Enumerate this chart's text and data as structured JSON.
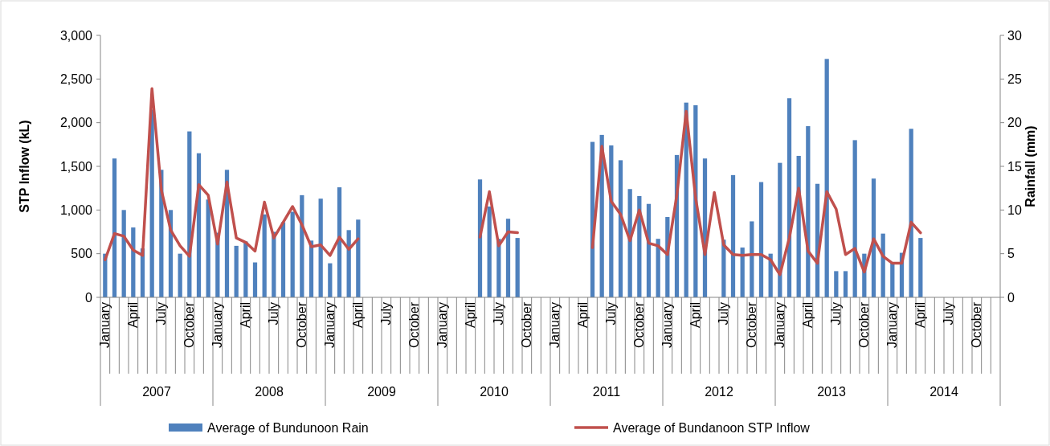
{
  "chart_data": {
    "type": "bar",
    "xlabel": null,
    "ylabel": "STP Inflow (kL)",
    "y2label": "Rainfall (mm)",
    "categories": [
      "January",
      null,
      null,
      "April",
      null,
      null,
      "July",
      null,
      null,
      "October",
      null,
      null,
      "January",
      null,
      null,
      "April",
      null,
      null,
      "July",
      null,
      null,
      "October",
      null,
      null,
      "January",
      null,
      null,
      "April",
      null,
      null,
      "July",
      null,
      null,
      "October",
      null,
      null,
      "January",
      null,
      null,
      "April",
      null,
      null,
      "July",
      null,
      null,
      "October",
      null,
      null,
      "January",
      null,
      null,
      "April",
      null,
      null,
      "July",
      null,
      null,
      "October",
      null,
      null,
      "January",
      null,
      null,
      "April",
      null,
      null,
      "July",
      null,
      null,
      "October",
      null,
      null,
      "January",
      null,
      null,
      "April",
      null,
      null,
      "July",
      null,
      null,
      "October",
      null,
      null,
      "January",
      null,
      null,
      "April",
      null,
      null,
      "July",
      null,
      null,
      "October",
      null,
      null
    ],
    "annotations": [
      "2007",
      "2008",
      "2009",
      "2010",
      "2011",
      "2012",
      "2013",
      "2014"
    ],
    "series": [
      {
        "name": "Average of Bundunoon Rain",
        "axis": "y2",
        "color": "#4f81bd",
        "values": [
          5.0,
          15.9,
          10.0,
          8.0,
          5.6,
          21.5,
          14.6,
          10.0,
          5.0,
          19.0,
          16.5,
          11.2,
          7.4,
          14.6,
          5.9,
          6.4,
          4.0,
          9.5,
          7.5,
          8.6,
          9.8,
          11.7,
          6.5,
          11.3,
          3.9,
          12.6,
          7.7,
          8.9,
          null,
          null,
          null,
          null,
          null,
          null,
          null,
          null,
          null,
          null,
          null,
          null,
          13.5,
          10.4,
          6.7,
          9.0,
          6.8,
          null,
          null,
          null,
          null,
          null,
          null,
          null,
          17.8,
          18.6,
          17.4,
          15.7,
          12.4,
          11.6,
          10.7,
          6.7,
          9.2,
          16.3,
          22.3,
          22.0,
          15.9,
          null,
          6.6,
          14.0,
          5.7,
          8.7,
          13.2,
          5.0,
          15.4,
          22.8,
          16.2,
          19.6,
          13.0,
          27.3,
          3.0,
          3.0,
          18.0,
          5.0,
          13.6,
          7.3,
          4.0,
          5.1,
          19.3,
          6.8,
          null,
          null,
          null,
          null,
          null,
          null,
          null,
          null
        ]
      },
      {
        "name": "Average of Bundanoon STP Inflow",
        "type": "line",
        "color": "#c0504d",
        "values": [
          430,
          730,
          700,
          540,
          480,
          2390,
          1230,
          770,
          590,
          470,
          1290,
          1170,
          610,
          1320,
          680,
          630,
          530,
          1090,
          680,
          860,
          1040,
          830,
          580,
          600,
          480,
          690,
          550,
          670,
          null,
          null,
          null,
          null,
          null,
          null,
          null,
          null,
          null,
          null,
          null,
          null,
          690,
          1210,
          590,
          750,
          740,
          null,
          null,
          null,
          null,
          null,
          null,
          null,
          570,
          1730,
          1100,
          950,
          650,
          1000,
          620,
          590,
          490,
          1170,
          2130,
          1140,
          490,
          1200,
          600,
          490,
          480,
          490,
          490,
          430,
          260,
          680,
          1250,
          530,
          390,
          1210,
          1010,
          490,
          560,
          290,
          670,
          470,
          390,
          390,
          860,
          740,
          null,
          null,
          null,
          null,
          null,
          null,
          null,
          null
        ]
      }
    ],
    "ylim": [
      0,
      3000
    ],
    "yticks": [
      0,
      {
        "value": 500,
        "label": "500"
      },
      {
        "value": 1000,
        "label": "1,000"
      },
      {
        "value": 1500,
        "label": "1,500"
      },
      {
        "value": 2000,
        "label": "2,000"
      },
      {
        "value": 2500,
        "label": "2,500"
      },
      {
        "value": 3000,
        "label": "3,000"
      }
    ],
    "y2lim": [
      0,
      30
    ],
    "y2ticks": [
      0,
      5,
      10,
      15,
      20,
      25,
      30
    ],
    "legend": "bottom"
  }
}
